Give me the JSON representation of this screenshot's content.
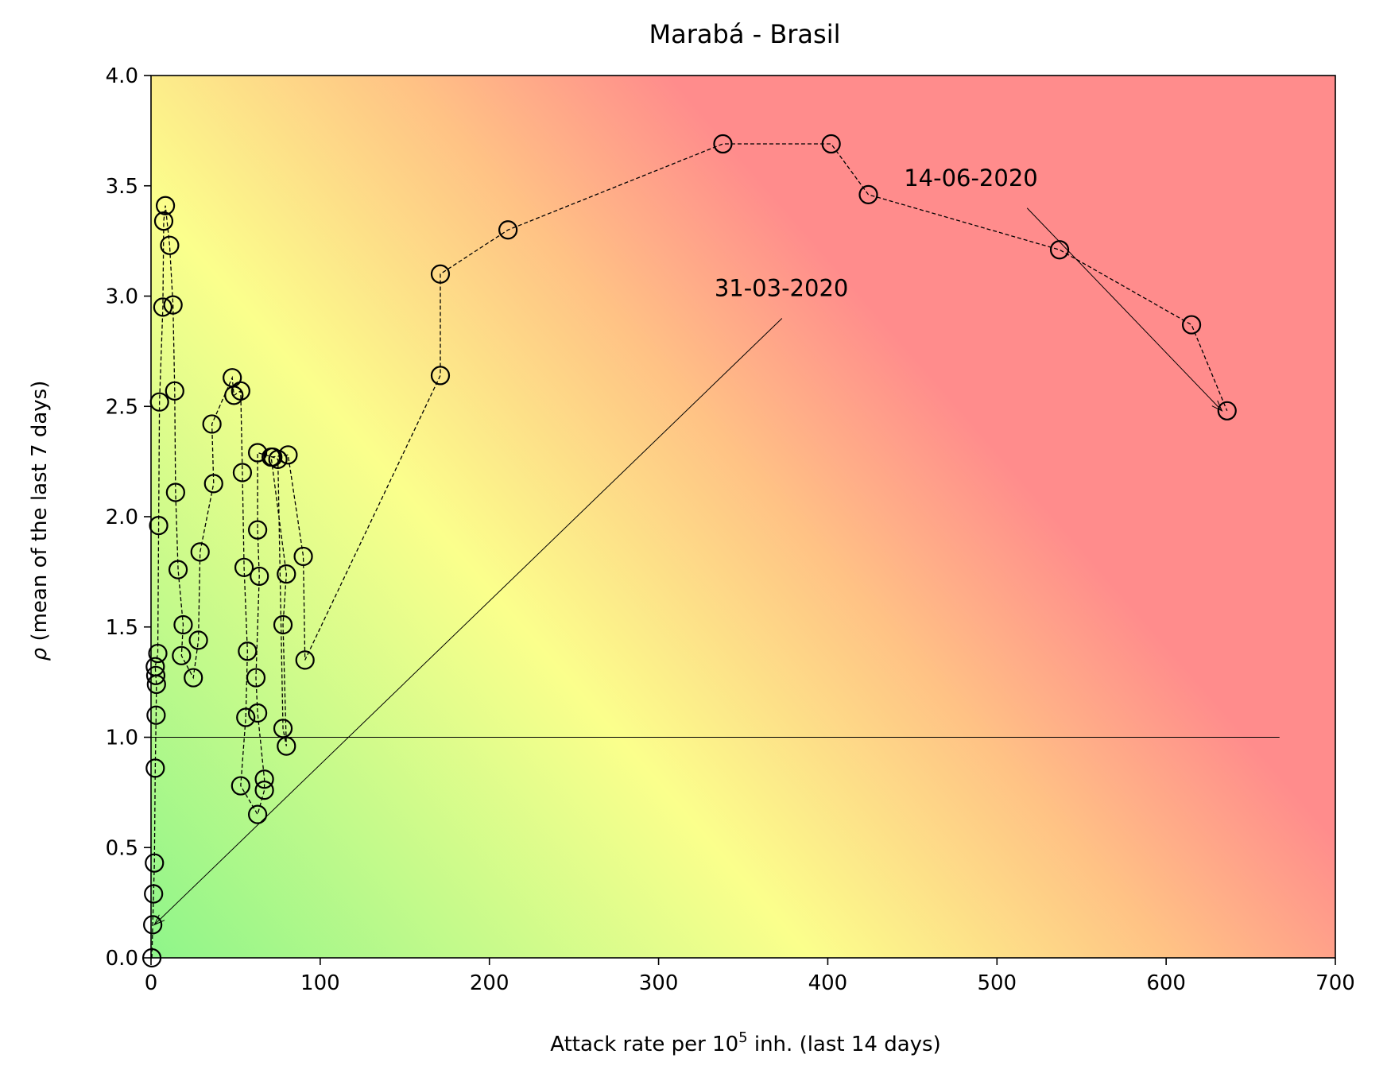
{
  "chart_data": {
    "type": "scatter",
    "title": "Marabá - Brasil",
    "xlabel_main": "Attack rate per 10",
    "xlabel_sup": "5",
    "xlabel_tail": " inh. (last 14 days)",
    "ylabel_greek": "ρ",
    "ylabel_rest": " (mean of the last 7 days)",
    "xlim": [
      0,
      700
    ],
    "ylim": [
      0,
      4.0
    ],
    "xticks": [
      "0",
      "100",
      "200",
      "300",
      "400",
      "500",
      "600",
      "700"
    ],
    "yticks": [
      "0.0",
      "0.5",
      "1.0",
      "1.5",
      "2.0",
      "2.5",
      "3.0",
      "3.5",
      "4.0"
    ],
    "reference_line_y": 1.0,
    "reference_line_x_range": [
      0,
      667
    ],
    "background": "risk gradient green→yellow→red",
    "colors": {
      "green": "#8ff58a",
      "yellow": "#fbff8c",
      "orange": "#ffc285",
      "red": "#ff8c8c"
    },
    "annotations": [
      {
        "text": "31-03-2020",
        "text_x": 333,
        "text_y": 3.0,
        "point_x": 2,
        "point_y": 0.15
      },
      {
        "text": "14-06-2020",
        "text_x": 445,
        "text_y": 3.5,
        "point_x": 633,
        "point_y": 2.48
      }
    ],
    "series": [
      {
        "marker": "open-circle",
        "line": "dashed",
        "points": [
          [
            0.5,
            0.0
          ],
          [
            1,
            0.15
          ],
          [
            1.5,
            0.29
          ],
          [
            2,
            0.43
          ],
          [
            2.5,
            0.86
          ],
          [
            3,
            1.1
          ],
          [
            3.2,
            1.24
          ],
          [
            2.8,
            1.28
          ],
          [
            2.5,
            1.32
          ],
          [
            4,
            1.38
          ],
          [
            4.5,
            1.96
          ],
          [
            5,
            2.52
          ],
          [
            7,
            2.95
          ],
          [
            7.5,
            3.34
          ],
          [
            8.5,
            3.41
          ],
          [
            11,
            3.23
          ],
          [
            13,
            2.96
          ],
          [
            14,
            2.57
          ],
          [
            14.5,
            2.11
          ],
          [
            16,
            1.76
          ],
          [
            19,
            1.51
          ],
          [
            18,
            1.37
          ],
          [
            25,
            1.27
          ],
          [
            28,
            1.44
          ],
          [
            29,
            1.84
          ],
          [
            37,
            2.15
          ],
          [
            36,
            2.42
          ],
          [
            48,
            2.63
          ],
          [
            49,
            2.55
          ],
          [
            53,
            2.57
          ],
          [
            54,
            2.2
          ],
          [
            55,
            1.77
          ],
          [
            57,
            1.39
          ],
          [
            56,
            1.09
          ],
          [
            53,
            0.78
          ],
          [
            63,
            0.65
          ],
          [
            67,
            0.76
          ],
          [
            67,
            0.81
          ],
          [
            63,
            1.11
          ],
          [
            62,
            1.27
          ],
          [
            64,
            1.73
          ],
          [
            63,
            1.94
          ],
          [
            63,
            2.29
          ],
          [
            72,
            2.27
          ],
          [
            75,
            2.26
          ],
          [
            78,
            1.04
          ],
          [
            80,
            0.96
          ],
          [
            78,
            1.51
          ],
          [
            80,
            1.74
          ],
          [
            71,
            2.27
          ],
          [
            81,
            2.28
          ],
          [
            90,
            1.82
          ],
          [
            91,
            1.35
          ],
          [
            171,
            2.64
          ],
          [
            171,
            3.1
          ],
          [
            211,
            3.3
          ],
          [
            338,
            3.69
          ],
          [
            402,
            3.69
          ],
          [
            424,
            3.46
          ],
          [
            537,
            3.21
          ],
          [
            615,
            2.87
          ],
          [
            636,
            2.48
          ]
        ]
      }
    ]
  }
}
